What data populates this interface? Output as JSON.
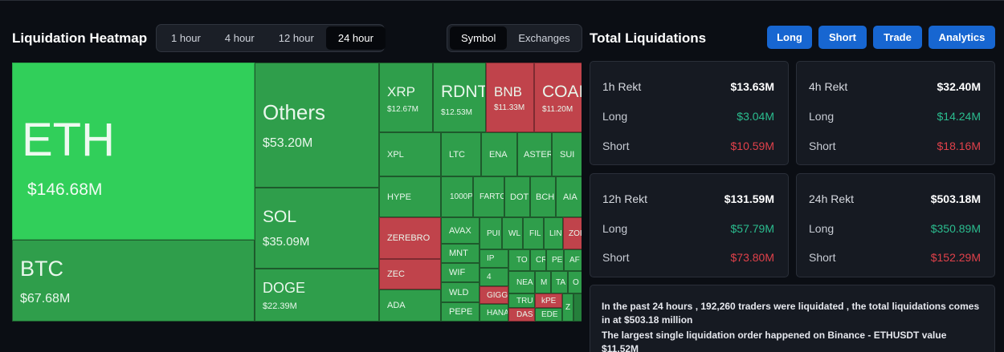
{
  "heatmap": {
    "title": "Liquidation Heatmap",
    "time_options": [
      "1 hour",
      "4 hour",
      "12 hour",
      "24 hour"
    ],
    "selected_time": "24 hour",
    "view_options": [
      "Symbol",
      "Exchanges"
    ],
    "selected_view": "Symbol",
    "tiles": [
      {
        "name": "ETH",
        "value": "$146.68M",
        "color": "light-green"
      },
      {
        "name": "BTC",
        "value": "$67.68M",
        "color": "green"
      },
      {
        "name": "Others",
        "value": "$53.20M",
        "color": "green"
      },
      {
        "name": "SOL",
        "value": "$35.09M",
        "color": "green"
      },
      {
        "name": "DOGE",
        "value": "$22.39M",
        "color": "green"
      },
      {
        "name": "XRP",
        "value": "$12.67M",
        "color": "green"
      },
      {
        "name": "RDNT",
        "value": "$12.53M",
        "color": "green"
      },
      {
        "name": "BNB",
        "value": "$11.33M",
        "color": "red"
      },
      {
        "name": "COAI",
        "value": "$11.20M",
        "color": "red"
      },
      {
        "name": "XPL"
      },
      {
        "name": "LTC"
      },
      {
        "name": "ENA"
      },
      {
        "name": "ASTER"
      },
      {
        "name": "SUI"
      },
      {
        "name": "HYPE"
      },
      {
        "name": "1000P"
      },
      {
        "name": "FARTC"
      },
      {
        "name": "DOT"
      },
      {
        "name": "BCH"
      },
      {
        "name": "AIA"
      },
      {
        "name": "ZEREBRO",
        "color": "red"
      },
      {
        "name": "AVAX"
      },
      {
        "name": "PUI"
      },
      {
        "name": "WL"
      },
      {
        "name": "FIL"
      },
      {
        "name": "LIN"
      },
      {
        "name": "ZOI",
        "color": "red"
      },
      {
        "name": "MNT"
      },
      {
        "name": "IP"
      },
      {
        "name": "TO"
      },
      {
        "name": "CR"
      },
      {
        "name": "PE"
      },
      {
        "name": "AF"
      },
      {
        "name": "ZEC",
        "color": "red"
      },
      {
        "name": "WIF"
      },
      {
        "name": "4"
      },
      {
        "name": "NEA"
      },
      {
        "name": "M"
      },
      {
        "name": "TA"
      },
      {
        "name": "O"
      },
      {
        "name": "WLD"
      },
      {
        "name": "GIGG",
        "color": "red"
      },
      {
        "name": "TRU"
      },
      {
        "name": "kPE",
        "color": "red"
      },
      {
        "name": "Z"
      },
      {
        "name": "ADA"
      },
      {
        "name": "PEPE"
      },
      {
        "name": "HANA"
      },
      {
        "name": "DAS",
        "color": "red"
      },
      {
        "name": "EDE"
      }
    ]
  },
  "total": {
    "title": "Total Liquidations",
    "buttons": [
      "Long",
      "Short",
      "Trade",
      "Analytics"
    ],
    "cards": [
      {
        "label": "1h Rekt",
        "total": "$13.63M",
        "long_label": "Long",
        "long": "$3.04M",
        "short_label": "Short",
        "short": "$10.59M"
      },
      {
        "label": "4h Rekt",
        "total": "$32.40M",
        "long_label": "Long",
        "long": "$14.24M",
        "short_label": "Short",
        "short": "$18.16M"
      },
      {
        "label": "12h Rekt",
        "total": "$131.59M",
        "long_label": "Long",
        "long": "$57.79M",
        "short_label": "Short",
        "short": "$73.80M"
      },
      {
        "label": "24h Rekt",
        "total": "$503.18M",
        "long_label": "Long",
        "long": "$350.89M",
        "short_label": "Short",
        "short": "$152.29M"
      }
    ],
    "summary_line1": "In the past 24 hours , 192,260 traders were liquidated , the total liquidations comes in at $503.18 million",
    "summary_line2": "The largest single liquidation order happened on Binance - ETHUSDT value $11.52M"
  },
  "colors": {
    "accent": "#1766d1",
    "long": "#2bbd8f",
    "short": "#e0414a",
    "tile_green": "#2f9e4b",
    "tile_light_green": "#31cf5a",
    "tile_red": "#c0434b"
  }
}
